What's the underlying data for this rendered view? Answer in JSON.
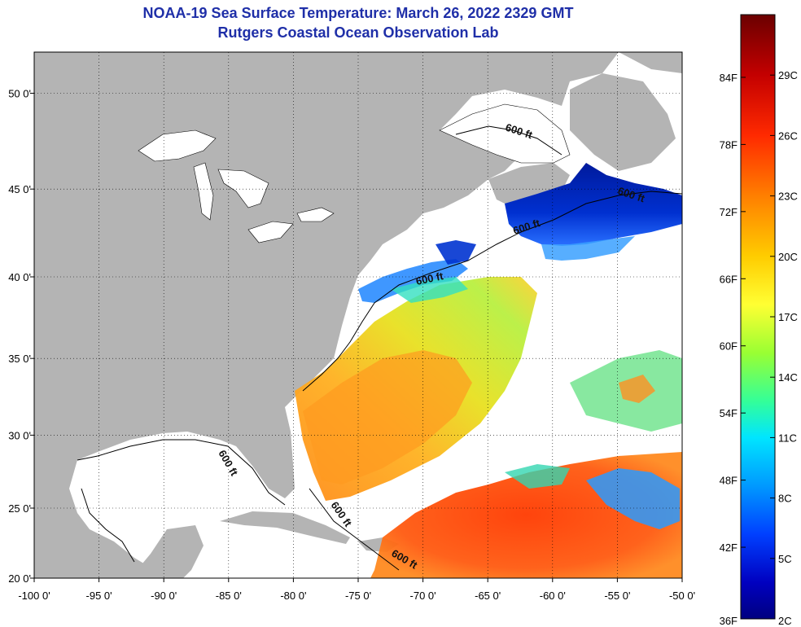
{
  "title": "NOAA-19 Sea Surface Temperature:  March 26, 2022 2329 GMT",
  "subtitle": "Rutgers Coastal Ocean Observation Lab",
  "axes": {
    "lon_ticks": [
      "-100 0'",
      "-95 0'",
      "-90 0'",
      "-85 0'",
      "-80 0'",
      "-75 0'",
      "-70 0'",
      "-65 0'",
      "-60 0'",
      "-55 0'",
      "-50 0'"
    ],
    "lat_ticks": [
      "50 0'",
      "45 0'",
      "40 0'",
      "35 0'",
      "30 0'",
      "25 0'",
      "20 0'"
    ],
    "lon_range": [
      -100,
      -50
    ],
    "lat_range": [
      20,
      52
    ]
  },
  "contour_labels": [
    "600 ft",
    "600 ft",
    "600 ft",
    "600 ft",
    "600 ft",
    "600 ft",
    "600 ft"
  ],
  "colorbar": {
    "fahrenheit": [
      "84F",
      "78F",
      "72F",
      "66F",
      "60F",
      "54F",
      "48F",
      "42F",
      "36F"
    ],
    "celsius": [
      "29C",
      "26C",
      "23C",
      "20C",
      "17C",
      "14C",
      "11C",
      "8C",
      "5C",
      "2C"
    ],
    "colors": [
      "#6b0000",
      "#c40000",
      "#ff2a00",
      "#ff7f00",
      "#ffcc00",
      "#ffff33",
      "#99ff33",
      "#33ff99",
      "#00e5ff",
      "#0099ff",
      "#0040ff",
      "#0000c0",
      "#000080"
    ]
  },
  "colors": {
    "land": "#b4b4b4",
    "ocean_no_data": "#ffffff",
    "title": "#1f2fa8"
  }
}
